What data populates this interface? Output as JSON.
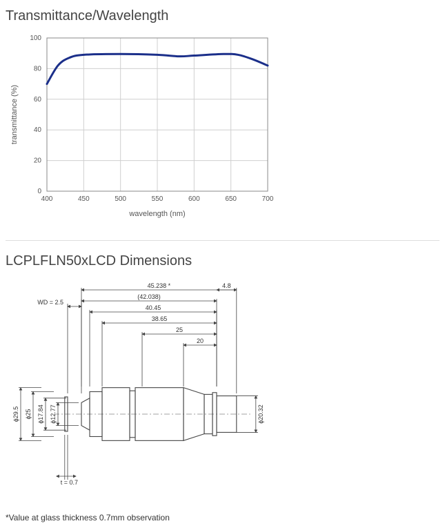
{
  "chart": {
    "type": "line",
    "title": "Transmittance/Wavelength",
    "title_fontsize": 20,
    "title_color": "#444444",
    "xlabel": "wavelength (nm)",
    "ylabel": "transmittance (%)",
    "label_fontsize": 11,
    "label_color": "#555555",
    "xlim": [
      400,
      700
    ],
    "ylim": [
      0,
      100
    ],
    "xtick_step": 50,
    "ytick_step": 20,
    "tick_fontsize": 10,
    "background_color": "#ffffff",
    "grid_color": "#cfcfcf",
    "grid_width": 1,
    "axis_color": "#888888",
    "line_color": "#1b2f8a",
    "line_width": 3,
    "x": [
      400,
      415,
      430,
      450,
      500,
      550,
      580,
      600,
      640,
      660,
      680,
      700
    ],
    "y": [
      70,
      82,
      87,
      89,
      89.5,
      89,
      88,
      88.5,
      89.5,
      89,
      86,
      82
    ]
  },
  "dimensions_section": {
    "title": "LCPLFLN50xLCD Dimensions",
    "title_fontsize": 20,
    "title_color": "#444444",
    "footnote": "*Value at glass thickness 0.7mm observation",
    "footnote_fontsize": 12,
    "drawing": {
      "outline_color": "#444444",
      "outline_width": 1.1,
      "dim_line_color": "#444444",
      "dim_text_color": "#333333",
      "dim_fontsize": 9,
      "horizontal_dims": [
        {
          "label": "WD = 2.5",
          "value": 2.5
        },
        {
          "label": "45.238 *",
          "value": 45.238
        },
        {
          "label": "(42.038)",
          "value": 42.038
        },
        {
          "label": "40.45",
          "value": 40.45
        },
        {
          "label": "38.65",
          "value": 38.65
        },
        {
          "label": "25",
          "value": 25
        },
        {
          "label": "20",
          "value": 20
        },
        {
          "label": "4.8",
          "value": 4.8
        },
        {
          "label": "t = 0.7",
          "value": 0.7
        }
      ],
      "vertical_dims": [
        {
          "label": "ϕ29.5",
          "value": 29.5
        },
        {
          "label": "ϕ25",
          "value": 25
        },
        {
          "label": "ϕ17.84",
          "value": 17.84
        },
        {
          "label": "ϕ12.77",
          "value": 12.77
        },
        {
          "label": "ϕ20.32",
          "value": 20.32
        }
      ]
    }
  }
}
